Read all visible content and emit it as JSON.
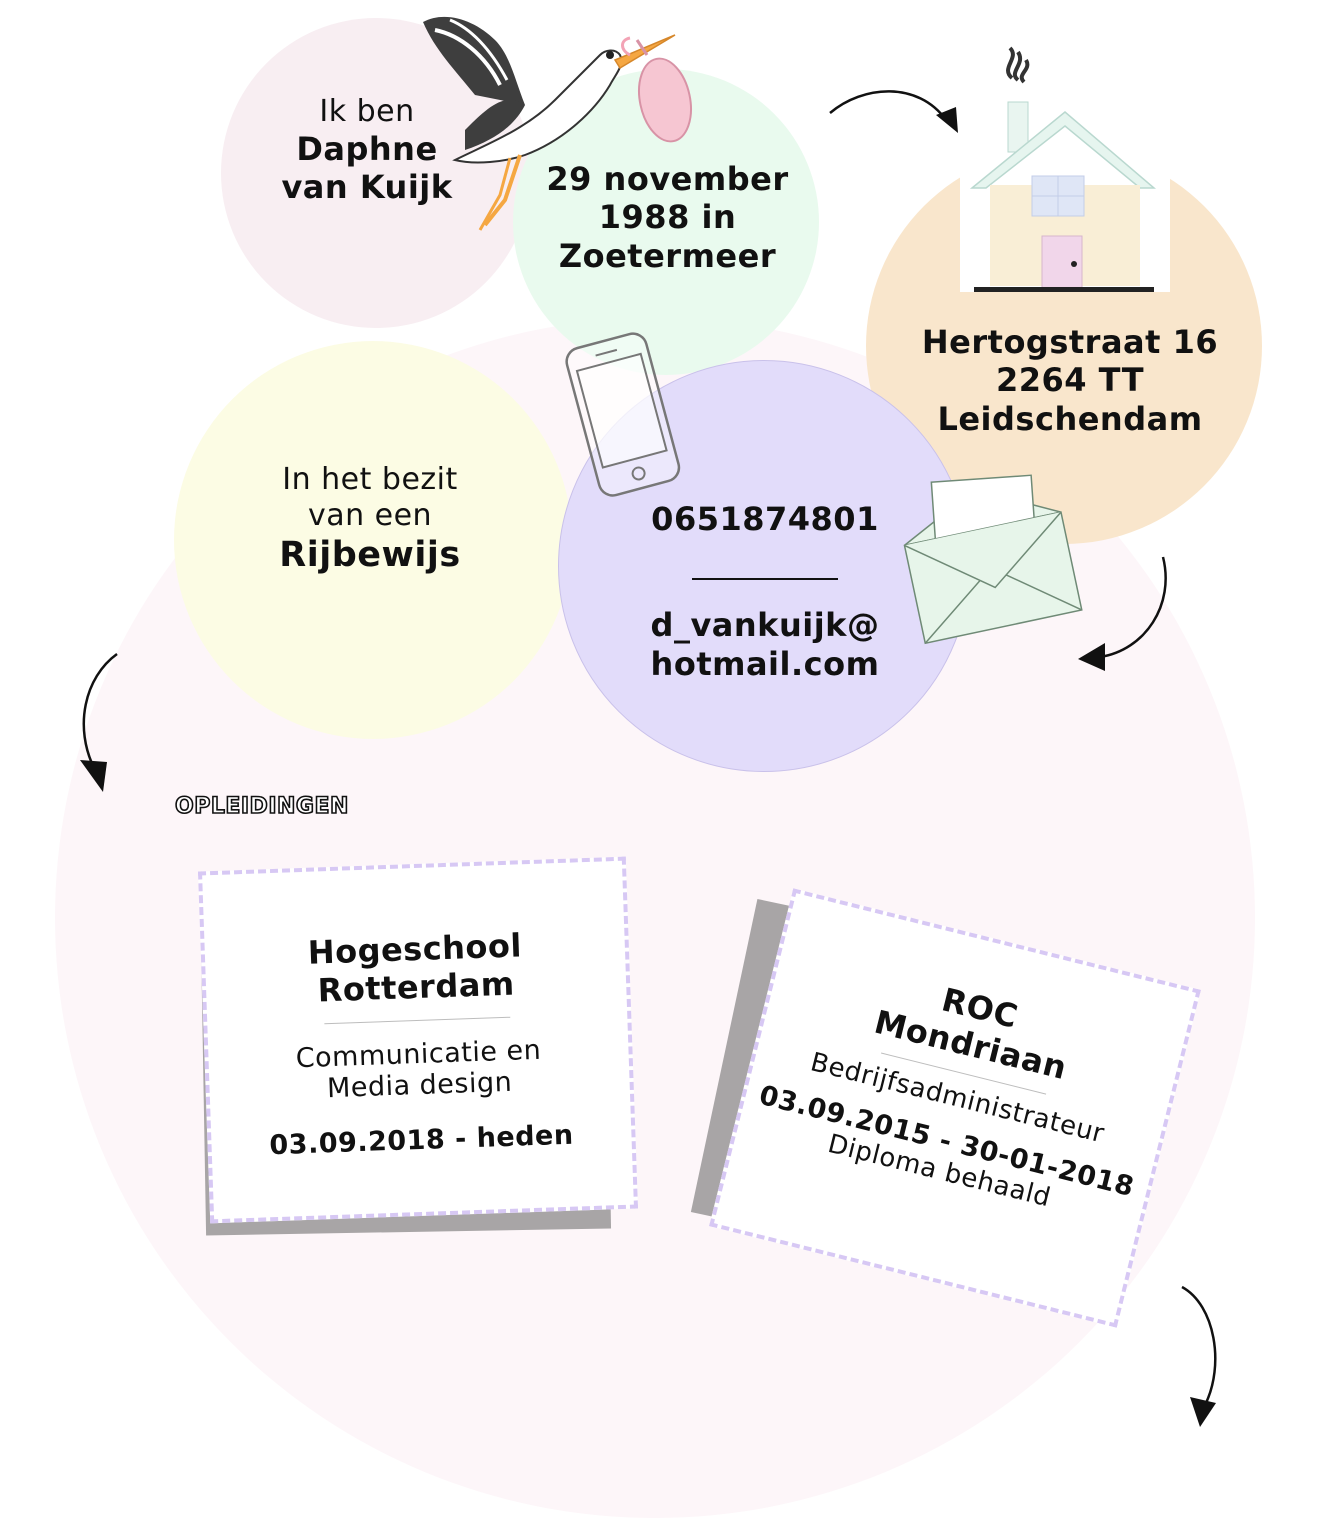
{
  "intro": {
    "line1": "Ik ben",
    "name_line1": "Daphne",
    "name_line2": "van Kuijk"
  },
  "birth": {
    "line1": "29 november",
    "line2": "1988 in",
    "line3": "Zoetermeer"
  },
  "address": {
    "line1": "Hertogstraat 16",
    "line2": "2264 TT",
    "line3": "Leidschendam"
  },
  "license": {
    "line1": "In het bezit",
    "line2": "van een",
    "line3": "Rijbewijs"
  },
  "contact": {
    "phone": "0651874801",
    "email_line1": "d_vankuijk@",
    "email_line2": "hotmail.com"
  },
  "education": {
    "heading": "OPLEIDINGEN",
    "items": [
      {
        "school_line1": "Hogeschool",
        "school_line2": "Rotterdam",
        "course_line1": "Communicatie en",
        "course_line2": "Media design",
        "period": "03.09.2018 - heden"
      },
      {
        "school_line1": "ROC",
        "school_line2": "Mondriaan",
        "course_line1": "Bedrijfsadministrateur",
        "period": "03.09.2015 - 30-01-2018",
        "note": "Diploma behaald"
      }
    ]
  },
  "icons": [
    "stork-icon",
    "house-icon",
    "phone-icon",
    "envelope-icon",
    "arrow-icon"
  ],
  "colors": {
    "pink": "#f8eef2",
    "mint": "#e9faee",
    "peach": "#f9e6cc",
    "yellow": "#fcfce4",
    "lavender": "#e2dcfa",
    "dash": "#d7c8f4",
    "shadow": "#a8a5a6"
  }
}
